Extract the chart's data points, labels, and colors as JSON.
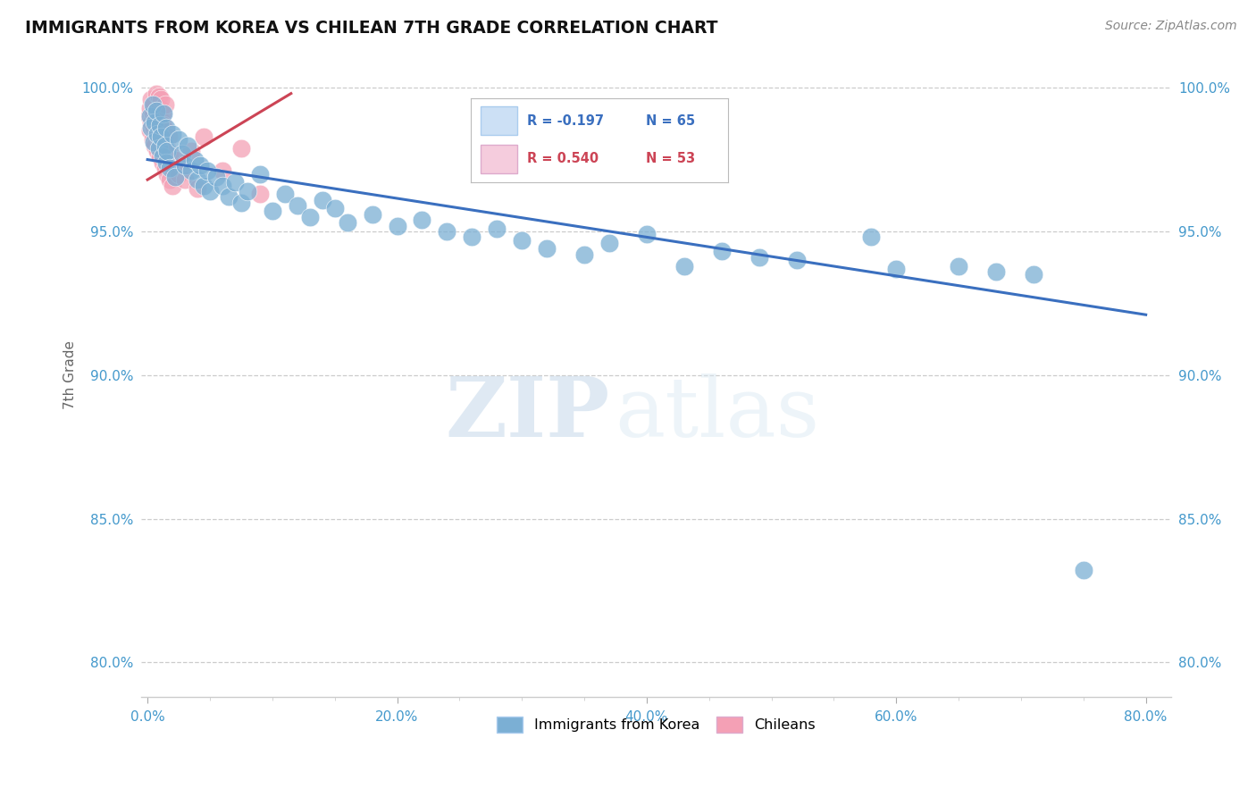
{
  "title": "IMMIGRANTS FROM KOREA VS CHILEAN 7TH GRADE CORRELATION CHART",
  "source": "Source: ZipAtlas.com",
  "ylabel": "7th Grade",
  "x_tick_labels": [
    "0.0%",
    "",
    "",
    "",
    "20.0%",
    "",
    "",
    "",
    "40.0%",
    "",
    "",
    "",
    "60.0%",
    "",
    "",
    "",
    "80.0%"
  ],
  "x_tick_vals": [
    0.0,
    0.05,
    0.1,
    0.15,
    0.2,
    0.25,
    0.3,
    0.35,
    0.4,
    0.45,
    0.5,
    0.55,
    0.6,
    0.65,
    0.7,
    0.75,
    0.8
  ],
  "y_tick_labels": [
    "80.0%",
    "85.0%",
    "90.0%",
    "95.0%",
    "100.0%"
  ],
  "y_tick_vals": [
    0.8,
    0.85,
    0.9,
    0.95,
    1.0
  ],
  "xlim": [
    -0.005,
    0.82
  ],
  "ylim": [
    0.788,
    1.012
  ],
  "legend_r_blue": "R = -0.197",
  "legend_n_blue": "N = 65",
  "legend_r_pink": "R = 0.540",
  "legend_n_pink": "N = 53",
  "blue_color": "#7bafd4",
  "pink_color": "#f4a0b5",
  "line_blue_color": "#3a6fbf",
  "line_pink_color": "#cc4455",
  "watermark_zip": "ZIP",
  "watermark_atlas": "atlas",
  "blue_line_x": [
    0.0,
    0.8
  ],
  "blue_line_y": [
    0.975,
    0.921
  ],
  "pink_line_x": [
    0.0,
    0.115
  ],
  "pink_line_y": [
    0.968,
    0.998
  ],
  "background_color": "#ffffff",
  "grid_color": "#cccccc",
  "blue_pts": [
    [
      0.002,
      0.99
    ],
    [
      0.003,
      0.986
    ],
    [
      0.004,
      0.994
    ],
    [
      0.005,
      0.981
    ],
    [
      0.006,
      0.988
    ],
    [
      0.007,
      0.992
    ],
    [
      0.008,
      0.984
    ],
    [
      0.009,
      0.979
    ],
    [
      0.01,
      0.987
    ],
    [
      0.011,
      0.983
    ],
    [
      0.012,
      0.976
    ],
    [
      0.013,
      0.991
    ],
    [
      0.014,
      0.98
    ],
    [
      0.015,
      0.974
    ],
    [
      0.015,
      0.986
    ],
    [
      0.016,
      0.978
    ],
    [
      0.018,
      0.972
    ],
    [
      0.02,
      0.984
    ],
    [
      0.022,
      0.969
    ],
    [
      0.025,
      0.982
    ],
    [
      0.028,
      0.977
    ],
    [
      0.03,
      0.973
    ],
    [
      0.032,
      0.98
    ],
    [
      0.035,
      0.971
    ],
    [
      0.038,
      0.975
    ],
    [
      0.04,
      0.968
    ],
    [
      0.042,
      0.973
    ],
    [
      0.045,
      0.966
    ],
    [
      0.048,
      0.971
    ],
    [
      0.05,
      0.964
    ],
    [
      0.055,
      0.969
    ],
    [
      0.06,
      0.966
    ],
    [
      0.065,
      0.962
    ],
    [
      0.07,
      0.967
    ],
    [
      0.075,
      0.96
    ],
    [
      0.08,
      0.964
    ],
    [
      0.09,
      0.97
    ],
    [
      0.1,
      0.957
    ],
    [
      0.11,
      0.963
    ],
    [
      0.12,
      0.959
    ],
    [
      0.13,
      0.955
    ],
    [
      0.14,
      0.961
    ],
    [
      0.15,
      0.958
    ],
    [
      0.16,
      0.953
    ],
    [
      0.18,
      0.956
    ],
    [
      0.2,
      0.952
    ],
    [
      0.22,
      0.954
    ],
    [
      0.24,
      0.95
    ],
    [
      0.26,
      0.948
    ],
    [
      0.28,
      0.951
    ],
    [
      0.3,
      0.947
    ],
    [
      0.32,
      0.944
    ],
    [
      0.35,
      0.942
    ],
    [
      0.37,
      0.946
    ],
    [
      0.4,
      0.949
    ],
    [
      0.43,
      0.938
    ],
    [
      0.46,
      0.943
    ],
    [
      0.49,
      0.941
    ],
    [
      0.52,
      0.94
    ],
    [
      0.58,
      0.948
    ],
    [
      0.6,
      0.937
    ],
    [
      0.65,
      0.938
    ],
    [
      0.68,
      0.936
    ],
    [
      0.71,
      0.935
    ],
    [
      0.75,
      0.832
    ]
  ],
  "pink_pts": [
    [
      0.001,
      0.99
    ],
    [
      0.002,
      0.985
    ],
    [
      0.002,
      0.993
    ],
    [
      0.003,
      0.988
    ],
    [
      0.003,
      0.996
    ],
    [
      0.004,
      0.982
    ],
    [
      0.004,
      0.991
    ],
    [
      0.005,
      0.986
    ],
    [
      0.005,
      0.994
    ],
    [
      0.006,
      0.98
    ],
    [
      0.006,
      0.989
    ],
    [
      0.007,
      0.984
    ],
    [
      0.007,
      0.992
    ],
    [
      0.007,
      0.998
    ],
    [
      0.008,
      0.978
    ],
    [
      0.008,
      0.987
    ],
    [
      0.009,
      0.982
    ],
    [
      0.009,
      0.991
    ],
    [
      0.009,
      0.997
    ],
    [
      0.01,
      0.976
    ],
    [
      0.01,
      0.985
    ],
    [
      0.01,
      0.993
    ],
    [
      0.011,
      0.98
    ],
    [
      0.011,
      0.989
    ],
    [
      0.011,
      0.996
    ],
    [
      0.012,
      0.974
    ],
    [
      0.012,
      0.983
    ],
    [
      0.012,
      0.991
    ],
    [
      0.013,
      0.978
    ],
    [
      0.013,
      0.987
    ],
    [
      0.014,
      0.972
    ],
    [
      0.014,
      0.981
    ],
    [
      0.014,
      0.994
    ],
    [
      0.015,
      0.976
    ],
    [
      0.015,
      0.985
    ],
    [
      0.016,
      0.97
    ],
    [
      0.016,
      0.979
    ],
    [
      0.017,
      0.974
    ],
    [
      0.017,
      0.983
    ],
    [
      0.018,
      0.968
    ],
    [
      0.018,
      0.977
    ],
    [
      0.019,
      0.972
    ],
    [
      0.02,
      0.966
    ],
    [
      0.022,
      0.975
    ],
    [
      0.025,
      0.97
    ],
    [
      0.028,
      0.973
    ],
    [
      0.03,
      0.968
    ],
    [
      0.035,
      0.978
    ],
    [
      0.04,
      0.965
    ],
    [
      0.045,
      0.983
    ],
    [
      0.06,
      0.971
    ],
    [
      0.075,
      0.979
    ],
    [
      0.09,
      0.963
    ]
  ]
}
